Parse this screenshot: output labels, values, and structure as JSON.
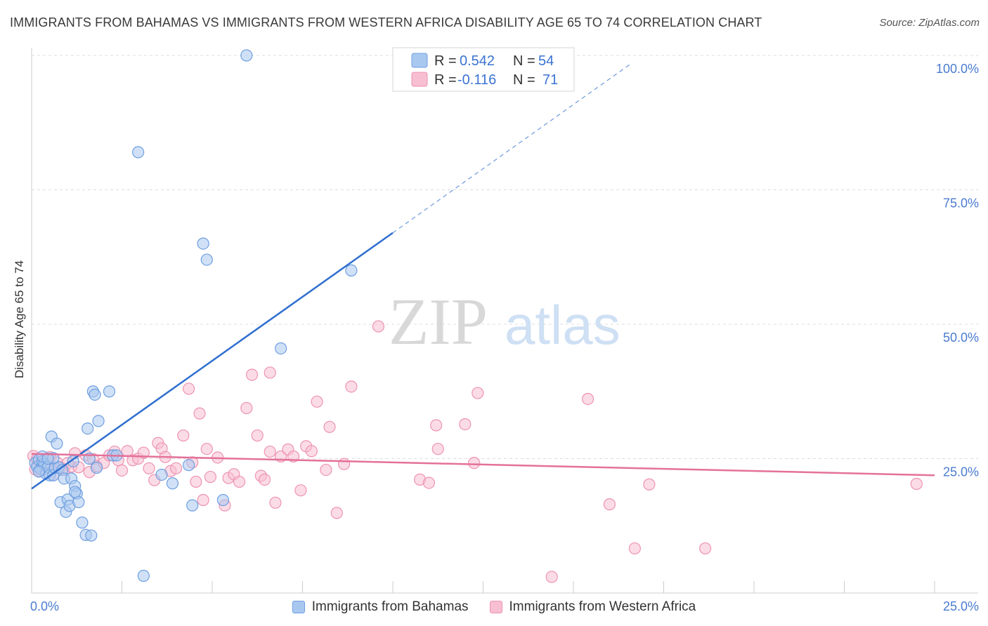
{
  "header": {
    "title": "IMMIGRANTS FROM BAHAMAS VS IMMIGRANTS FROM WESTERN AFRICA DISABILITY AGE 65 TO 74 CORRELATION CHART",
    "source": "Source: ZipAtlas.com"
  },
  "watermark": {
    "zip": "ZIP",
    "atlas": "atlas"
  },
  "legend_box": {
    "rows": [
      {
        "r_label": "R =",
        "r_value": "0.542",
        "n_label": "N =",
        "n_value": "54"
      },
      {
        "r_label": "R =",
        "r_value": "-0.116",
        "n_label": "N =",
        "n_value": "71"
      }
    ]
  },
  "bottom_legend": {
    "series_1": "Immigrants from Bahamas",
    "series_2": "Immigrants from Western Africa"
  },
  "colors": {
    "blue_fill": "#a9c8f0",
    "blue_stroke": "#6f9fe0",
    "blue_line": "#2f6fcf",
    "pink_fill": "#f7bfd1",
    "pink_stroke": "#ee93b0",
    "pink_line": "#e4719a",
    "tick_text": "#4a7bd0",
    "grid": "#dcdcdc"
  },
  "chart_data": {
    "type": "scatter",
    "title": "IMMIGRANTS FROM BAHAMAS VS IMMIGRANTS FROM WESTERN AFRICA DISABILITY AGE 65 TO 74 CORRELATION CHART",
    "xlabel": "",
    "ylabel": "Disability Age 65 to 74",
    "xlim": [
      0,
      25
    ],
    "ylim": [
      0,
      100
    ],
    "x_tick_labels": [
      "0.0%",
      "25.0%"
    ],
    "y_ticks": [
      25,
      50,
      75,
      100
    ],
    "y_tick_labels": [
      "25.0%",
      "50.0%",
      "75.0%",
      "100.0%"
    ],
    "grid": true,
    "legend_position": "top-center",
    "series": [
      {
        "name": "Immigrants from Bahamas",
        "color": "#a9c8f0",
        "r": 0.542,
        "n": 54,
        "trend": {
          "x0": 0,
          "y0": 19.4,
          "x1": 10,
          "y1": 67.0,
          "dash_x1": 16.6,
          "dash_y1": 98.5
        },
        "points": [
          [
            0.1,
            24.2
          ],
          [
            0.15,
            23.5
          ],
          [
            0.2,
            24.8
          ],
          [
            0.25,
            23.0
          ],
          [
            0.3,
            24.5
          ],
          [
            0.35,
            24.0
          ],
          [
            0.4,
            22.2
          ],
          [
            0.45,
            23.4
          ],
          [
            0.5,
            21.9
          ],
          [
            0.55,
            29.1
          ],
          [
            0.6,
            21.9
          ],
          [
            0.65,
            23.3
          ],
          [
            0.7,
            27.8
          ],
          [
            0.75,
            23.4
          ],
          [
            0.8,
            16.9
          ],
          [
            0.85,
            22.9
          ],
          [
            0.9,
            21.3
          ],
          [
            0.95,
            15.1
          ],
          [
            1.0,
            17.4
          ],
          [
            1.05,
            16.2
          ],
          [
            1.1,
            21.3
          ],
          [
            1.15,
            24.5
          ],
          [
            1.2,
            19.9
          ],
          [
            1.25,
            18.5
          ],
          [
            1.3,
            16.9
          ],
          [
            1.4,
            13.1
          ],
          [
            1.5,
            10.8
          ],
          [
            1.55,
            30.6
          ],
          [
            1.6,
            25.0
          ],
          [
            1.65,
            10.7
          ],
          [
            1.7,
            37.5
          ],
          [
            1.75,
            36.9
          ],
          [
            1.8,
            23.3
          ],
          [
            1.85,
            32.0
          ],
          [
            2.15,
            37.5
          ],
          [
            2.25,
            25.6
          ],
          [
            2.35,
            25.6
          ],
          [
            2.95,
            82.0
          ],
          [
            3.1,
            3.2
          ],
          [
            3.6,
            22.0
          ],
          [
            3.9,
            20.4
          ],
          [
            4.35,
            23.8
          ],
          [
            4.45,
            16.3
          ],
          [
            4.75,
            65.0
          ],
          [
            4.85,
            62.0
          ],
          [
            5.3,
            17.3
          ],
          [
            5.95,
            100.0
          ],
          [
            6.9,
            45.5
          ],
          [
            8.85,
            60.0
          ],
          [
            0.3,
            25.4
          ],
          [
            0.6,
            25.1
          ],
          [
            1.2,
            18.8
          ],
          [
            0.45,
            25.0
          ],
          [
            0.2,
            22.6
          ]
        ]
      },
      {
        "name": "Immigrants from Western Africa",
        "color": "#f7bfd1",
        "r": -0.116,
        "n": 71,
        "trend": {
          "x0": 0,
          "y0": 25.9,
          "x1": 25,
          "y1": 21.9
        },
        "points": [
          [
            0.05,
            25.5
          ],
          [
            0.1,
            23.0
          ],
          [
            0.15,
            24.9
          ],
          [
            0.2,
            22.7
          ],
          [
            0.3,
            24.2
          ],
          [
            0.4,
            23.1
          ],
          [
            0.5,
            25.3
          ],
          [
            0.6,
            21.9
          ],
          [
            0.7,
            24.3
          ],
          [
            0.8,
            23.4
          ],
          [
            0.9,
            22.9
          ],
          [
            1.0,
            24.2
          ],
          [
            1.1,
            23.5
          ],
          [
            1.2,
            26.0
          ],
          [
            1.3,
            23.4
          ],
          [
            1.5,
            25.6
          ],
          [
            1.6,
            22.5
          ],
          [
            1.7,
            24.9
          ],
          [
            1.8,
            23.6
          ],
          [
            2.0,
            24.2
          ],
          [
            2.15,
            25.6
          ],
          [
            2.3,
            26.3
          ],
          [
            2.4,
            24.7
          ],
          [
            2.5,
            22.8
          ],
          [
            2.65,
            26.4
          ],
          [
            2.8,
            24.7
          ],
          [
            2.95,
            25.0
          ],
          [
            3.1,
            26.1
          ],
          [
            3.25,
            23.2
          ],
          [
            3.4,
            21.0
          ],
          [
            3.5,
            27.9
          ],
          [
            3.6,
            26.9
          ],
          [
            3.7,
            25.3
          ],
          [
            3.85,
            22.7
          ],
          [
            4.0,
            23.2
          ],
          [
            4.2,
            29.3
          ],
          [
            4.35,
            38.0
          ],
          [
            4.45,
            24.3
          ],
          [
            4.55,
            20.7
          ],
          [
            4.65,
            33.4
          ],
          [
            4.75,
            17.3
          ],
          [
            4.85,
            26.8
          ],
          [
            4.95,
            21.6
          ],
          [
            5.15,
            25.2
          ],
          [
            5.35,
            16.3
          ],
          [
            5.45,
            21.4
          ],
          [
            5.6,
            22.1
          ],
          [
            5.75,
            20.7
          ],
          [
            5.95,
            34.4
          ],
          [
            6.1,
            40.6
          ],
          [
            6.25,
            29.3
          ],
          [
            6.35,
            21.8
          ],
          [
            6.45,
            21.1
          ],
          [
            6.6,
            26.3
          ],
          [
            6.75,
            16.8
          ],
          [
            6.9,
            25.4
          ],
          [
            7.1,
            26.7
          ],
          [
            7.25,
            25.4
          ],
          [
            7.45,
            19.1
          ],
          [
            7.6,
            27.3
          ],
          [
            7.75,
            26.4
          ],
          [
            7.9,
            35.6
          ],
          [
            8.15,
            22.9
          ],
          [
            8.25,
            30.9
          ],
          [
            8.45,
            14.9
          ],
          [
            8.65,
            24.0
          ],
          [
            8.85,
            38.4
          ],
          [
            9.6,
            49.6
          ],
          [
            11.2,
            31.2
          ],
          [
            12.35,
            37.2
          ],
          [
            17.1,
            20.2
          ]
        ]
      }
    ],
    "extra_pink_points": [
      [
        10.75,
        21.1
      ],
      [
        11.0,
        20.5
      ],
      [
        11.25,
        26.8
      ],
      [
        12.0,
        31.4
      ],
      [
        12.25,
        24.2
      ],
      [
        15.4,
        36.1
      ],
      [
        16.0,
        16.5
      ],
      [
        16.7,
        8.3
      ],
      [
        18.65,
        8.3
      ],
      [
        14.4,
        3.0
      ],
      [
        24.5,
        20.3
      ],
      [
        6.6,
        41.0
      ]
    ]
  }
}
